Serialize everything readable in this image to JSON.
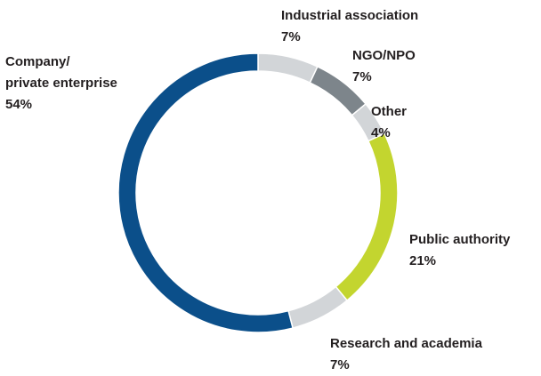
{
  "chart_data": {
    "type": "donut",
    "categories": [
      "Industrial association",
      "NGO/NPO",
      "Other",
      "Public authority",
      "Research and academia",
      "Company/\nprivate enterprise"
    ],
    "values": [
      7,
      7,
      4,
      21,
      7,
      54
    ],
    "value_labels": [
      "7%",
      "7%",
      "4%",
      "21%",
      "7%",
      "54%"
    ],
    "colors": [
      "#d2d5d8",
      "#7d858b",
      "#d2d5d8",
      "#c3d52f",
      "#d2d5d8",
      "#0b4f8a"
    ]
  }
}
